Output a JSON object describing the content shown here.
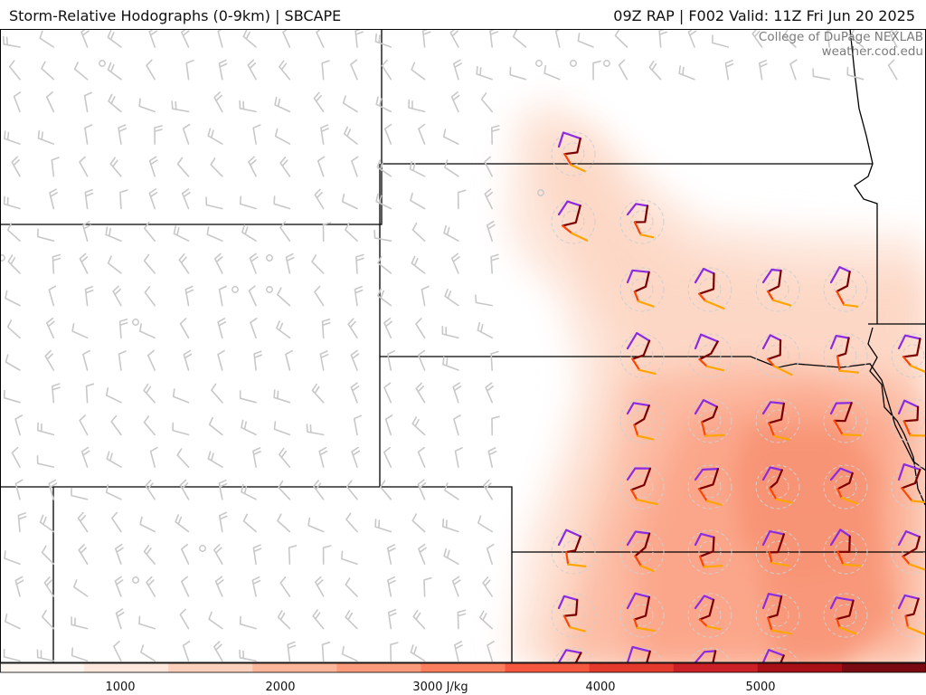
{
  "header": {
    "title": "Storm-Relative Hodographs (0-9km) | SBCAPE",
    "valid": "09Z RAP | F002 Valid: 11Z Fri Jun 20 2025"
  },
  "credit": {
    "line1": "College of DuPage NEXLAB",
    "line2": "weather.cod.edu"
  },
  "colorbar": {
    "tick_labels": [
      "1000",
      "2000",
      "3000 J/kg",
      "4000",
      "5000"
    ],
    "colors": [
      "#fff5f0",
      "#fee7dc",
      "#fdd0bb",
      "#fcb79b",
      "#fc9b7c",
      "#fb7e5f",
      "#f5583f",
      "#e43a2e",
      "#cc2027",
      "#a81016",
      "#7a0a12"
    ],
    "range_min": 250,
    "range_max": 6000
  },
  "cape_field": {
    "units": "J/kg",
    "note_colors": {
      "low": "#fde5da",
      "mid": "#fcae91",
      "high": "#f6896a"
    }
  },
  "hodograph_colors": {
    "layer_0_1km": "#8a2be2",
    "layer_1_3km": "#7a0000",
    "layer_3_6km": "#ff4500",
    "layer_6_9km": "#ffa500"
  }
}
